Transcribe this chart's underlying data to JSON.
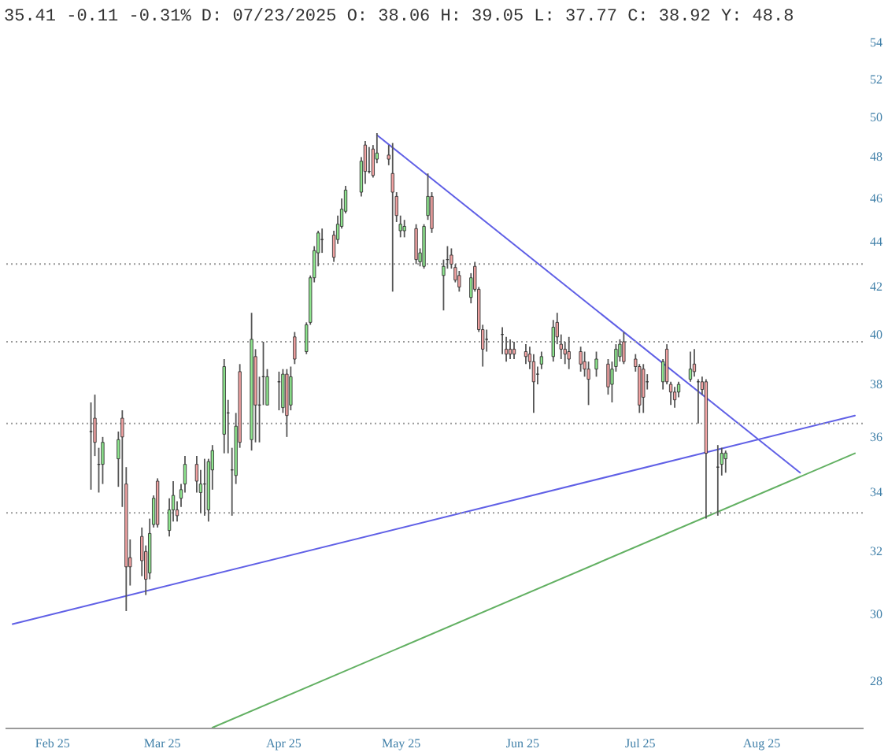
{
  "chart_data": {
    "type": "candlestick",
    "title": "35.41 -0.11 -0.31% D: 07/23/2025 O: 38.06 H: 39.05 L: 37.77 C: 38.92 Y: 48.8",
    "x": [
      "2025-02-11",
      "2025-02-12",
      "2025-02-13",
      "2025-02-14",
      "2025-02-18",
      "2025-02-19",
      "2025-02-20",
      "2025-02-21",
      "2025-02-24",
      "2025-02-25",
      "2025-02-26",
      "2025-02-27",
      "2025-02-28",
      "2025-03-03",
      "2025-03-04",
      "2025-03-05",
      "2025-03-06",
      "2025-03-07",
      "2025-03-10",
      "2025-03-11",
      "2025-03-12",
      "2025-03-13",
      "2025-03-14",
      "2025-03-17",
      "2025-03-18",
      "2025-03-19",
      "2025-03-20",
      "2025-03-21",
      "2025-03-24",
      "2025-03-25",
      "2025-03-26",
      "2025-03-27",
      "2025-03-28",
      "2025-03-31",
      "2025-04-01",
      "2025-04-02",
      "2025-04-03",
      "2025-04-04",
      "2025-04-07",
      "2025-04-08",
      "2025-04-09",
      "2025-04-10",
      "2025-04-11",
      "2025-04-14",
      "2025-04-15",
      "2025-04-16",
      "2025-04-17",
      "2025-04-21",
      "2025-04-22",
      "2025-04-23",
      "2025-04-24",
      "2025-04-25",
      "2025-04-28",
      "2025-04-29",
      "2025-04-30",
      "2025-05-01",
      "2025-05-02",
      "2025-05-05",
      "2025-05-06",
      "2025-05-07",
      "2025-05-08",
      "2025-05-09",
      "2025-05-12",
      "2025-05-13",
      "2025-05-14",
      "2025-05-15",
      "2025-05-16",
      "2025-05-19",
      "2025-05-20",
      "2025-05-21",
      "2025-05-22",
      "2025-05-23",
      "2025-05-27",
      "2025-05-28",
      "2025-05-29",
      "2025-05-30",
      "2025-06-02",
      "2025-06-03",
      "2025-06-04",
      "2025-06-05",
      "2025-06-06",
      "2025-06-09",
      "2025-06-10",
      "2025-06-11",
      "2025-06-12",
      "2025-06-13",
      "2025-06-16",
      "2025-06-17",
      "2025-06-18",
      "2025-06-20",
      "2025-06-23",
      "2025-06-24",
      "2025-06-25",
      "2025-06-26",
      "2025-06-27",
      "2025-06-30",
      "2025-07-01",
      "2025-07-02",
      "2025-07-03",
      "2025-07-07",
      "2025-07-08",
      "2025-07-09",
      "2025-07-10",
      "2025-07-11",
      "2025-07-14",
      "2025-07-15",
      "2025-07-16",
      "2025-07-17",
      "2025-07-18",
      "2025-07-21",
      "2025-07-22",
      "2025-07-23"
    ],
    "ohlc": [
      [
        36.2,
        37.3,
        34.1,
        36.2
      ],
      [
        36.7,
        37.6,
        35.3,
        35.8
      ],
      [
        35.0,
        35.6,
        34.0,
        35.0
      ],
      [
        35.0,
        36.0,
        34.3,
        35.8
      ],
      [
        35.2,
        36.2,
        34.2,
        35.9
      ],
      [
        36.7,
        37.0,
        33.5,
        36.0
      ],
      [
        34.3,
        34.9,
        30.1,
        31.5
      ],
      [
        31.8,
        32.4,
        30.9,
        31.5
      ],
      [
        32.5,
        32.8,
        31.2,
        31.7
      ],
      [
        32.0,
        32.2,
        30.6,
        31.1
      ],
      [
        31.3,
        33.1,
        31.1,
        32.6
      ],
      [
        32.9,
        33.9,
        32.8,
        33.8
      ],
      [
        34.4,
        34.5,
        32.8,
        32.9
      ],
      [
        32.7,
        33.8,
        32.5,
        33.4
      ],
      [
        33.4,
        34.4,
        33.0,
        33.9
      ],
      [
        33.4,
        33.7,
        33.0,
        33.2
      ],
      [
        33.8,
        34.3,
        33.5,
        34.1
      ],
      [
        34.3,
        35.3,
        34.0,
        35.0
      ],
      [
        35.0,
        35.3,
        34.0,
        34.4
      ],
      [
        34.0,
        34.8,
        33.3,
        34.3
      ],
      [
        34.3,
        35.2,
        33.2,
        34.3
      ],
      [
        33.4,
        35.2,
        33.0,
        35.1
      ],
      [
        34.8,
        35.7,
        34.1,
        35.5
      ],
      [
        36.1,
        39.0,
        35.4,
        38.7
      ],
      [
        36.9,
        37.4,
        35.4,
        36.9
      ],
      [
        34.8,
        35.6,
        33.2,
        34.8
      ],
      [
        34.6,
        36.9,
        34.3,
        36.4
      ],
      [
        38.5,
        38.8,
        35.6,
        35.8
      ],
      [
        35.9,
        40.9,
        35.5,
        39.8
      ],
      [
        39.1,
        39.4,
        35.8,
        37.2
      ],
      [
        37.2,
        38.3,
        35.8,
        37.2
      ],
      [
        38.3,
        39.7,
        37.2,
        38.3
      ],
      [
        37.2,
        38.6,
        37.2,
        38.3
      ],
      [
        38.1,
        38.5,
        37.0,
        38.1
      ],
      [
        37.1,
        38.6,
        36.9,
        38.4
      ],
      [
        38.4,
        38.6,
        36.0,
        36.8
      ],
      [
        37.2,
        38.7,
        37.0,
        38.3
      ],
      [
        39.9,
        40.1,
        38.8,
        39.0
      ],
      [
        39.3,
        40.5,
        39.2,
        40.4
      ],
      [
        40.5,
        42.5,
        40.4,
        42.4
      ],
      [
        42.4,
        43.8,
        42.2,
        43.6
      ],
      [
        43.5,
        44.5,
        42.9,
        44.4
      ],
      [
        44.1,
        44.6,
        43.5,
        44.1
      ],
      [
        44.3,
        44.5,
        43.1,
        43.3
      ],
      [
        44.1,
        45.2,
        43.9,
        44.8
      ],
      [
        44.7,
        46.0,
        44.6,
        45.5
      ],
      [
        45.4,
        46.6,
        45.3,
        46.4
      ],
      [
        46.3,
        48.0,
        46.1,
        47.8
      ],
      [
        48.6,
        48.8,
        46.7,
        47.3
      ],
      [
        47.3,
        48.5,
        47.2,
        47.3
      ],
      [
        48.4,
        48.6,
        47.0,
        47.1
      ],
      [
        47.9,
        49.2,
        47.7,
        48.2
      ],
      [
        48.1,
        48.6,
        47.6,
        47.9
      ],
      [
        47.2,
        48.7,
        41.8,
        46.3
      ],
      [
        46.1,
        46.3,
        44.9,
        45.2
      ],
      [
        44.5,
        45.2,
        44.2,
        44.8
      ],
      [
        44.5,
        45.0,
        44.2,
        44.7
      ],
      [
        44.6,
        44.8,
        43.0,
        43.2
      ],
      [
        43.1,
        43.7,
        42.9,
        43.5
      ],
      [
        42.9,
        44.8,
        42.8,
        44.7
      ],
      [
        45.2,
        47.2,
        45.0,
        46.1
      ],
      [
        46.1,
        46.3,
        44.4,
        44.6
      ],
      [
        42.5,
        43.2,
        41.0,
        42.9
      ],
      [
        43.2,
        43.8,
        42.8,
        43.2
      ],
      [
        43.4,
        43.7,
        42.8,
        43.0
      ],
      [
        42.85,
        43.0,
        42.2,
        42.3
      ],
      [
        42.5,
        42.7,
        41.8,
        42.0
      ],
      [
        41.55,
        42.6,
        41.3,
        42.4
      ],
      [
        42.9,
        43.1,
        41.8,
        41.9
      ],
      [
        41.9,
        42.0,
        40.1,
        40.2
      ],
      [
        40.2,
        40.4,
        38.7,
        39.4
      ],
      [
        39.8,
        40.2,
        39.3,
        39.8
      ],
      [
        40.0,
        40.3,
        39.2,
        40.0
      ],
      [
        39.4,
        39.9,
        38.9,
        39.2
      ],
      [
        39.4,
        39.8,
        39.0,
        39.2
      ],
      [
        39.4,
        39.7,
        39.0,
        39.2
      ],
      [
        39.3,
        39.6,
        38.8,
        39.1
      ],
      [
        39.2,
        39.5,
        38.6,
        38.9
      ],
      [
        38.9,
        39.2,
        36.9,
        38.1
      ],
      [
        38.4,
        38.7,
        38.0,
        38.4
      ],
      [
        38.8,
        39.3,
        38.6,
        39.1
      ],
      [
        39.1,
        40.6,
        38.9,
        40.3
      ],
      [
        40.5,
        40.9,
        39.6,
        39.9
      ],
      [
        39.6,
        40.0,
        39.0,
        39.4
      ],
      [
        39.4,
        39.7,
        38.8,
        39.2
      ],
      [
        39.3,
        39.9,
        38.6,
        39.0
      ],
      [
        39.3,
        39.5,
        38.5,
        38.8
      ],
      [
        38.9,
        39.3,
        38.3,
        38.6
      ],
      [
        38.6,
        38.9,
        37.2,
        38.2
      ],
      [
        38.6,
        39.3,
        38.3,
        39.0
      ],
      [
        38.8,
        39.0,
        37.6,
        37.9
      ],
      [
        38.0,
        38.9,
        37.3,
        38.6
      ],
      [
        38.7,
        39.6,
        38.5,
        39.4
      ],
      [
        39.1,
        39.8,
        38.9,
        39.6
      ],
      [
        39.7,
        40.1,
        38.8,
        38.9
      ],
      [
        39.0,
        39.2,
        38.5,
        38.7
      ],
      [
        38.7,
        38.8,
        36.9,
        37.2
      ],
      [
        38.6,
        38.8,
        36.9,
        37.5
      ],
      [
        38.1,
        38.4,
        37.8,
        38.1
      ],
      [
        38.1,
        39.0,
        37.8,
        38.9
      ],
      [
        39.4,
        39.6,
        38.0,
        38.1
      ],
      [
        38.0,
        38.1,
        37.2,
        37.7
      ],
      [
        37.7,
        37.9,
        37.1,
        37.4
      ],
      [
        37.7,
        38.1,
        37.5,
        38.0
      ],
      [
        38.2,
        39.3,
        38.1,
        38.6
      ],
      [
        38.8,
        39.4,
        38.3,
        38.5
      ],
      [
        38.1,
        38.2,
        36.5,
        38.1
      ],
      [
        38.1,
        38.3,
        37.6,
        37.8
      ],
      [
        38.1,
        38.2,
        33.1,
        35.4
      ],
      [
        34.9,
        35.7,
        33.2,
        34.9
      ],
      [
        35.0,
        35.6,
        34.6,
        35.4
      ],
      [
        35.2,
        35.5,
        34.7,
        35.41
      ]
    ],
    "colors": [
      "#333333",
      "#f2a2a2",
      "#333333",
      "#8ee68e",
      "#8ee68e",
      "#f2a2a2",
      "#f2a2a2",
      "#f2a2a2",
      "#f2a2a2",
      "#f2a2a2",
      "#8ee68e",
      "#8ee68e",
      "#f2a2a2",
      "#8ee68e",
      "#8ee68e",
      "#f2a2a2",
      "#8ee68e",
      "#8ee68e",
      "#f2a2a2",
      "#8ee68e",
      "#333333",
      "#8ee68e",
      "#8ee68e",
      "#8ee68e",
      "#333333",
      "#333333",
      "#8ee68e",
      "#f2a2a2",
      "#8ee68e",
      "#f2a2a2",
      "#333333",
      "#333333",
      "#8ee68e",
      "#333333",
      "#8ee68e",
      "#f2a2a2",
      "#8ee68e",
      "#f2a2a2",
      "#8ee68e",
      "#8ee68e",
      "#8ee68e",
      "#8ee68e",
      "#333333",
      "#f2a2a2",
      "#8ee68e",
      "#8ee68e",
      "#8ee68e",
      "#8ee68e",
      "#f2a2a2",
      "#333333",
      "#f2a2a2",
      "#8ee68e",
      "#f2a2a2",
      "#f2a2a2",
      "#f2a2a2",
      "#8ee68e",
      "#8ee68e",
      "#f2a2a2",
      "#8ee68e",
      "#8ee68e",
      "#8ee68e",
      "#f2a2a2",
      "#8ee68e",
      "#333333",
      "#f2a2a2",
      "#f2a2a2",
      "#f2a2a2",
      "#8ee68e",
      "#f2a2a2",
      "#f2a2a2",
      "#f2a2a2",
      "#333333",
      "#333333",
      "#f2a2a2",
      "#f2a2a2",
      "#f2a2a2",
      "#f2a2a2",
      "#f2a2a2",
      "#f2a2a2",
      "#333333",
      "#8ee68e",
      "#8ee68e",
      "#f2a2a2",
      "#f2a2a2",
      "#f2a2a2",
      "#f2a2a2",
      "#f2a2a2",
      "#f2a2a2",
      "#f2a2a2",
      "#8ee68e",
      "#f2a2a2",
      "#8ee68e",
      "#8ee68e",
      "#8ee68e",
      "#f2a2a2",
      "#f2a2a2",
      "#f2a2a2",
      "#f2a2a2",
      "#333333",
      "#8ee68e",
      "#f2a2a2",
      "#f2a2a2",
      "#f2a2a2",
      "#8ee68e",
      "#8ee68e",
      "#f2a2a2",
      "#333333",
      "#f2a2a2",
      "#f2a2a2",
      "#333333",
      "#8ee68e",
      "#8ee68e"
    ],
    "series": [
      {
        "type": "line",
        "color": "#6060e6",
        "x": [
          "2025-04-25",
          "2025-08-11"
        ],
        "values": [
          49.1,
          34.7
        ]
      },
      {
        "type": "line",
        "color": "#6060e6",
        "x": [
          "2025-01-22",
          "2025-08-25"
        ],
        "values": [
          29.7,
          36.8
        ]
      },
      {
        "type": "line",
        "color": "#62b062",
        "x": [
          "2025-03-14",
          "2025-08-25"
        ],
        "values": [
          26.7,
          35.4
        ]
      }
    ],
    "ref_lines": [
      {
        "axis": "y",
        "value": 43.0,
        "color": "#999999",
        "line_style": "dotted"
      },
      {
        "axis": "y",
        "value": 39.7,
        "color": "#999999",
        "line_style": "dotted"
      },
      {
        "axis": "y",
        "value": 36.5,
        "color": "#999999",
        "line_style": "dotted"
      },
      {
        "axis": "y",
        "value": 33.3,
        "color": "#999999",
        "line_style": "dotted"
      }
    ],
    "xlim": [
      "2025-01-22",
      "2025-08-25"
    ],
    "xticks": [
      {
        "value": "2025-02-01",
        "label": "Feb 25"
      },
      {
        "value": "2025-03-01",
        "label": "Mar 25"
      },
      {
        "value": "2025-04-01",
        "label": "Apr 25"
      },
      {
        "value": "2025-05-01",
        "label": "May 25"
      },
      {
        "value": "2025-06-01",
        "label": "Jun 25"
      },
      {
        "value": "2025-07-01",
        "label": "Jul 25"
      },
      {
        "value": "2025-08-01",
        "label": "Aug 25"
      }
    ],
    "ylim": [
      26.7,
      54
    ],
    "yticks": [
      28,
      30,
      32,
      34,
      36,
      38,
      40,
      42,
      44,
      46,
      48,
      50,
      52,
      54
    ],
    "log": true
  }
}
